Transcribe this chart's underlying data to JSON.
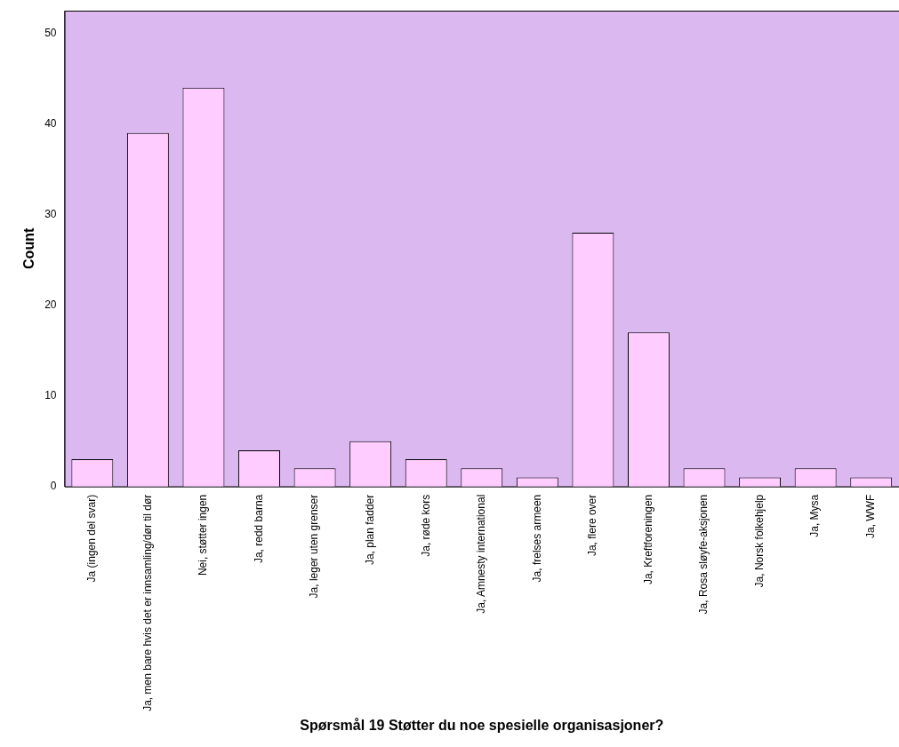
{
  "chart_data": {
    "type": "bar",
    "xlabel": "Spørsmål 19 Støtter du noe spesielle organisasjoner?",
    "ylabel": "Count",
    "categories": [
      "Ja (ingen del svar)",
      "Ja, men bare hvis det er innsamling/dør til dør",
      "Nei, støtter ingen",
      "Ja, redd barna",
      "Ja, leger uten grenser",
      "Ja, plan fadder",
      "Ja, røde kors",
      "Ja, Amnesty international",
      "Ja, frelses armeen",
      "Ja, flere over",
      "Ja, Kreftforeningen",
      "Ja, Rosa sløyfe-aksjonen",
      "Ja, Norsk folkehjelp",
      "Ja, Mysa",
      "Ja, WWF"
    ],
    "values": [
      3,
      39,
      44,
      4,
      2,
      5,
      3,
      2,
      1,
      28,
      17,
      2,
      1,
      2,
      1
    ],
    "color": "#ffccff",
    "ylim": [
      0,
      52.5
    ],
    "yticks": [
      0,
      10,
      20,
      30,
      40,
      50
    ],
    "grid": false,
    "legend": false
  }
}
